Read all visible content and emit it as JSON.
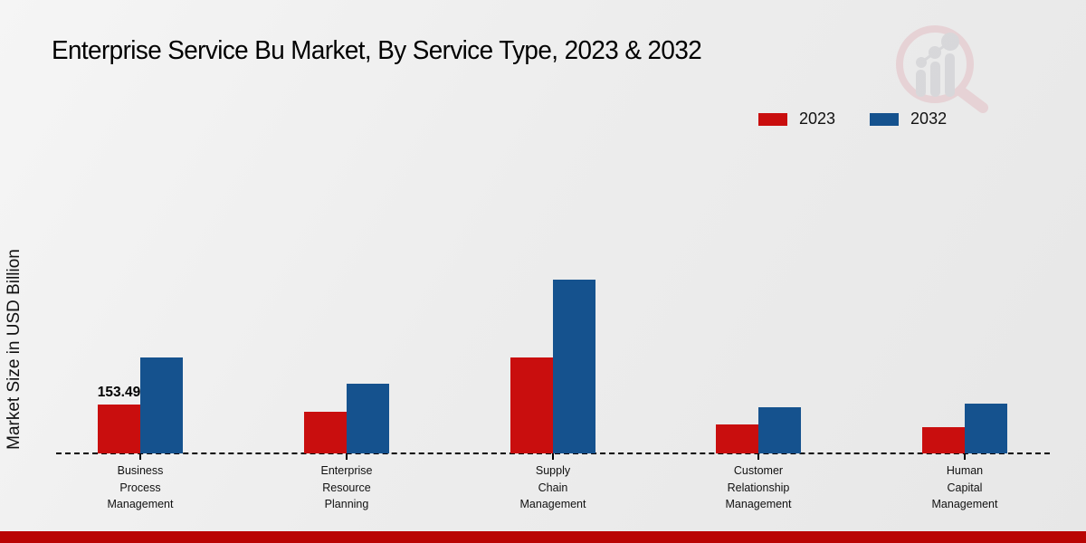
{
  "page": {
    "title": "Enterprise Service Bu Market, By Service Type, 2023 & 2032"
  },
  "chart_data": {
    "type": "bar",
    "title": "Enterprise Service Bu Market, By Service Type, 2023 & 2032",
    "xlabel": "",
    "ylabel": "Market Size in USD Billion",
    "categories": [
      "Business\nProcess\nManagement",
      "Enterprise\nResource\nPlanning",
      "Supply\nChain\nManagement",
      "Customer\nRelationship\nManagement",
      "Human\nCapital\nManagement"
    ],
    "series": [
      {
        "name": "2023",
        "color": "#c90e0e",
        "values": [
          153.49,
          131,
          303,
          91,
          82
        ]
      },
      {
        "name": "2032",
        "color": "#15528e",
        "values": [
          304,
          220,
          548,
          146,
          156
        ]
      }
    ],
    "annotations": [
      {
        "text": "153.49",
        "category_index": 0,
        "series_index": 0
      }
    ],
    "ylim": [
      0,
      600
    ],
    "grid": false,
    "legend_position": "top-right",
    "baseline_style": "dashed"
  },
  "colors": {
    "footer_bar": "#b90504",
    "text": "#111111",
    "watermark_pink": "#e3bfc4",
    "watermark_gray": "#c9c9cd"
  },
  "icons": {
    "watermark": "magnifier-bar-chart-logo"
  }
}
